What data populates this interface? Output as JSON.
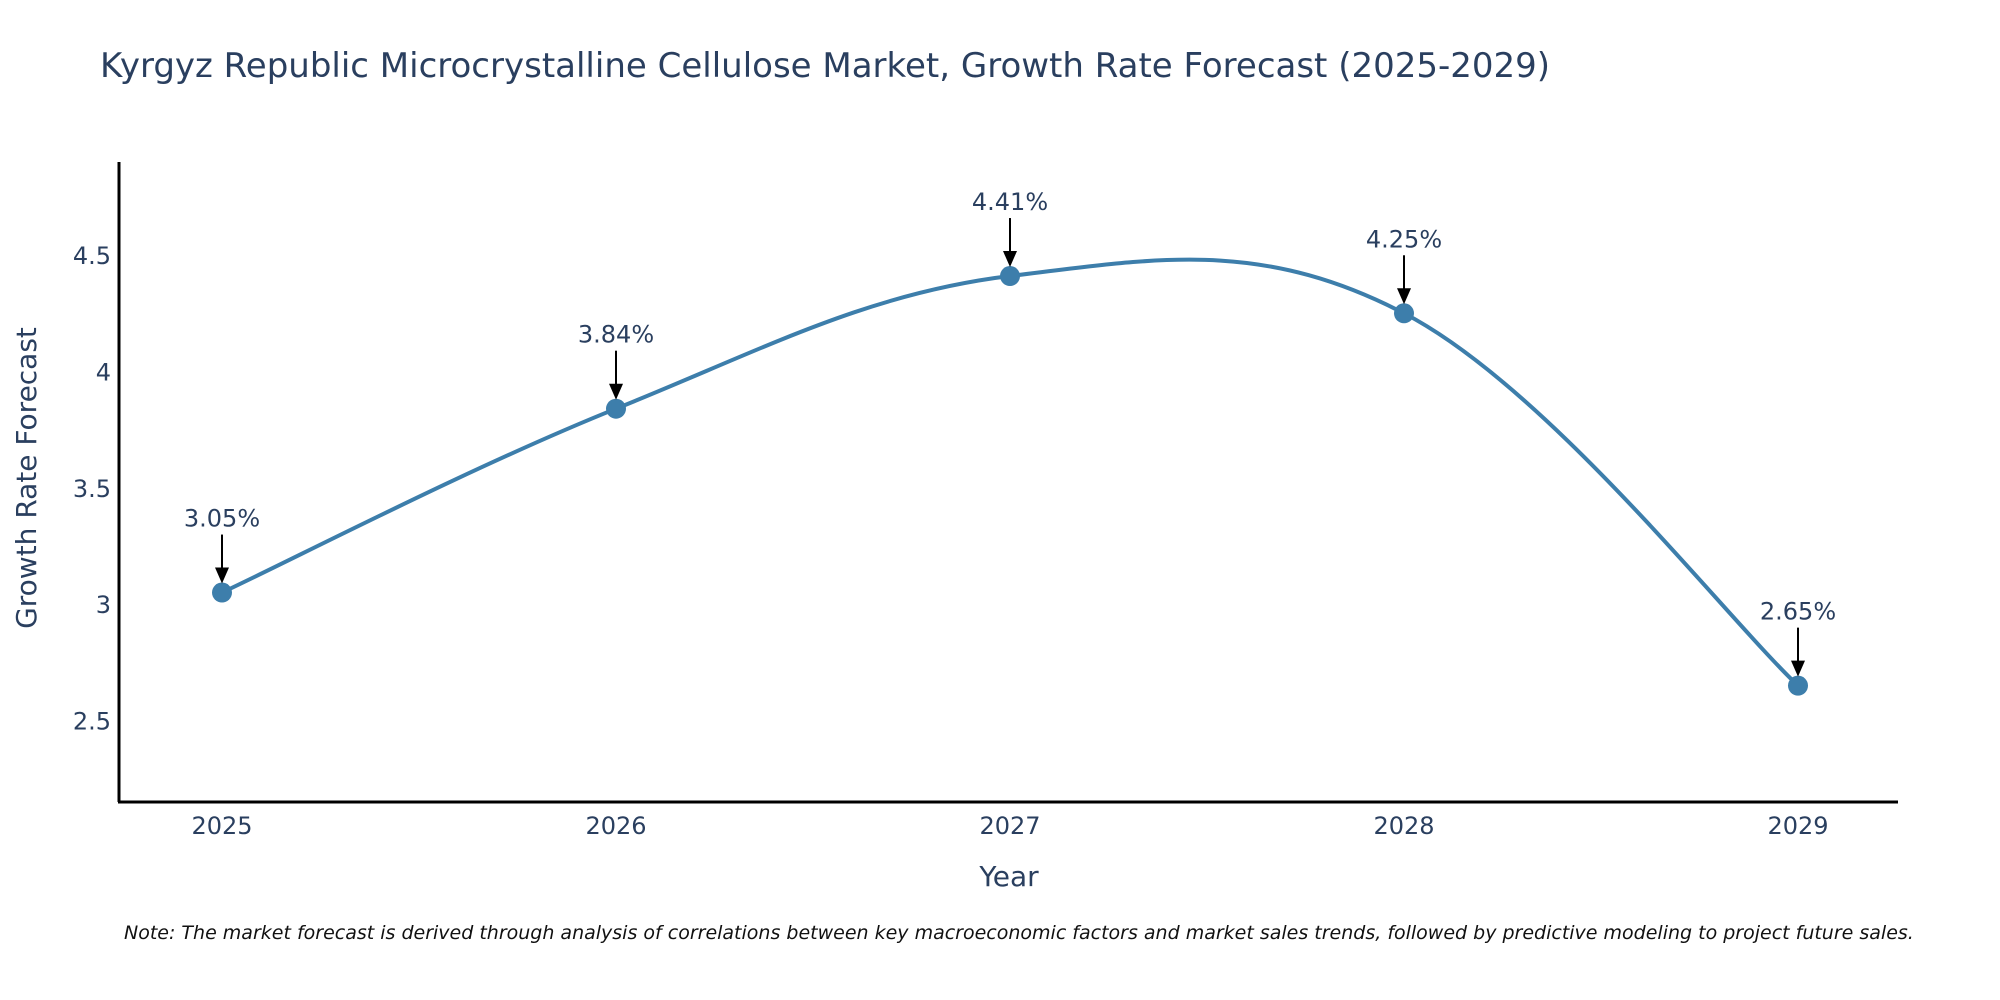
{
  "chart_data": {
    "type": "line",
    "title": "Kyrgyz Republic Microcrystalline Cellulose Market, Growth Rate Forecast (2025-2029)",
    "xlabel": "Year",
    "ylabel": "Growth Rate Forecast",
    "categories": [
      "2025",
      "2026",
      "2027",
      "2028",
      "2029"
    ],
    "values": [
      3.05,
      3.84,
      4.41,
      4.25,
      2.65
    ],
    "data_labels": [
      "3.05%",
      "3.84%",
      "4.41%",
      "4.25%",
      "2.65%"
    ],
    "yticks": [
      2.5,
      3,
      3.5,
      4,
      4.5
    ],
    "ytick_labels": [
      "2.5",
      "3",
      "3.5",
      "4",
      "4.5"
    ],
    "ylim": [
      2.15,
      4.9
    ],
    "grid": false,
    "line_color": "#3d7eab",
    "marker_color": "#3d7eab",
    "note": "Note: The market forecast is derived through analysis of correlations between key macroeconomic factors and market sales trends, followed by predictive modeling to project future sales."
  }
}
